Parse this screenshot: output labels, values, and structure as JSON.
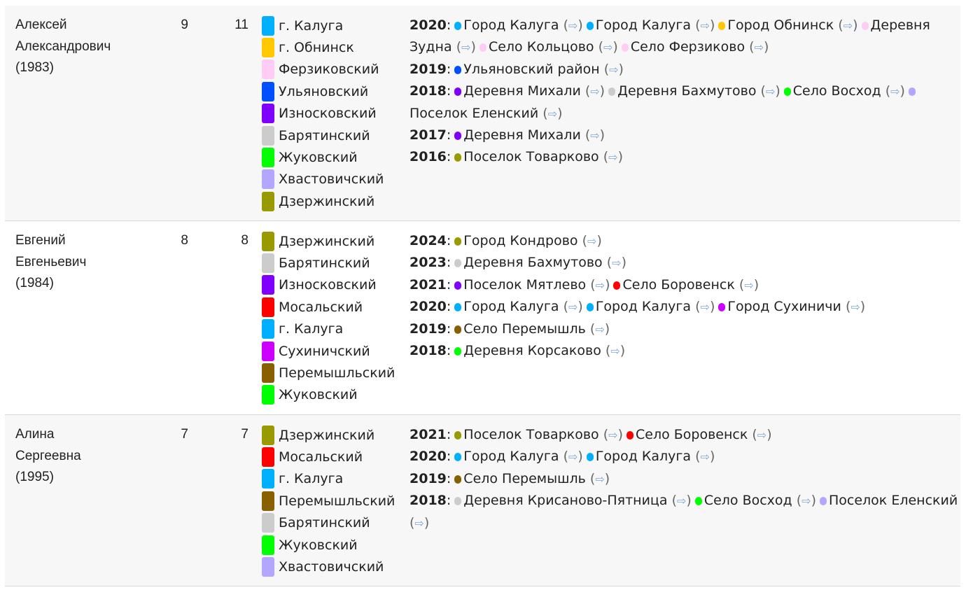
{
  "colors": {
    "г. Калуга": "#00b0ff",
    "г. Обнинск": "#ffc800",
    "Ферзиковский": "#ffccf5",
    "Ульяновский": "#0050ff",
    "Износковский": "#8000ff",
    "Барятинский": "#cccccc",
    "Жуковский": "#00ff00",
    "Хвастовичский": "#b3a6ff",
    "Дзержинский": "#999900",
    "Мосальский": "#ff0000",
    "Сухиничский": "#cc00ff",
    "Перемышльский": "#886000"
  },
  "link_arrow": "⇨",
  "rows": [
    {
      "name_lines": [
        "Алексей",
        "Александрович",
        "(1983)"
      ],
      "n1": "9",
      "n2": "11",
      "districts": [
        "г. Калуга",
        "г. Обнинск",
        "Ферзиковский",
        "Ульяновский",
        "Износковский",
        "Барятинский",
        "Жуковский",
        "Хвастовичский",
        "Дзержинский"
      ],
      "history": [
        {
          "year": "2020",
          "places": [
            {
              "label": "Город Калуга",
              "district": "г. Калуга"
            },
            {
              "label": "Город Калуга",
              "district": "г. Калуга"
            },
            {
              "label": "Город Обнинск",
              "district": "г. Обнинск"
            },
            {
              "label": "Деревня Зудна",
              "district": "Ферзиковский"
            },
            {
              "label": "Село Кольцово",
              "district": "Ферзиковский"
            },
            {
              "label": "Село Ферзиково",
              "district": "Ферзиковский"
            }
          ]
        },
        {
          "year": "2019",
          "places": [
            {
              "label": "Ульяновский район",
              "district": "Ульяновский"
            }
          ]
        },
        {
          "year": "2018",
          "places": [
            {
              "label": "Деревня Михали",
              "district": "Износковский"
            },
            {
              "label": "Деревня Бахмутово",
              "district": "Барятинский"
            },
            {
              "label": "Село Восход",
              "district": "Жуковский"
            },
            {
              "label": "Поселок Еленский",
              "district": "Хвастовичский"
            }
          ]
        },
        {
          "year": "2017",
          "places": [
            {
              "label": "Деревня Михали",
              "district": "Износковский"
            }
          ]
        },
        {
          "year": "2016",
          "places": [
            {
              "label": "Поселок Товарково",
              "district": "Дзержинский"
            }
          ]
        }
      ]
    },
    {
      "name_lines": [
        "Евгений",
        "Евгеньевич",
        "(1984)"
      ],
      "n1": "8",
      "n2": "8",
      "districts": [
        "Дзержинский",
        "Барятинский",
        "Износковский",
        "Мосальский",
        "г. Калуга",
        "Сухиничский",
        "Перемышльский",
        "Жуковский"
      ],
      "history": [
        {
          "year": "2024",
          "places": [
            {
              "label": "Город Кондрово",
              "district": "Дзержинский"
            }
          ]
        },
        {
          "year": "2023",
          "places": [
            {
              "label": "Деревня Бахмутово",
              "district": "Барятинский"
            }
          ]
        },
        {
          "year": "2021",
          "places": [
            {
              "label": "Поселок Мятлево",
              "district": "Износковский"
            },
            {
              "label": "Село Боровенск",
              "district": "Мосальский"
            }
          ]
        },
        {
          "year": "2020",
          "places": [
            {
              "label": "Город Калуга",
              "district": "г. Калуга"
            },
            {
              "label": "Город Калуга",
              "district": "г. Калуга"
            },
            {
              "label": "Город Сухиничи",
              "district": "Сухиничский"
            }
          ]
        },
        {
          "year": "2019",
          "places": [
            {
              "label": "Село Перемышль",
              "district": "Перемышльский"
            }
          ]
        },
        {
          "year": "2018",
          "places": [
            {
              "label": "Деревня Корсаково",
              "district": "Жуковский"
            }
          ]
        }
      ]
    },
    {
      "name_lines": [
        "Алина",
        "Сергеевна",
        "(1995)"
      ],
      "n1": "7",
      "n2": "7",
      "districts": [
        "Дзержинский",
        "Мосальский",
        "г. Калуга",
        "Перемышльский",
        "Барятинский",
        "Жуковский",
        "Хвастовичский"
      ],
      "history": [
        {
          "year": "2021",
          "places": [
            {
              "label": "Поселок Товарково",
              "district": "Дзержинский"
            },
            {
              "label": "Село Боровенск",
              "district": "Мосальский"
            }
          ]
        },
        {
          "year": "2020",
          "places": [
            {
              "label": "Город Калуга",
              "district": "г. Калуга"
            },
            {
              "label": "Город Калуга",
              "district": "г. Калуга"
            }
          ]
        },
        {
          "year": "2019",
          "places": [
            {
              "label": "Село Перемышль",
              "district": "Перемышльский"
            }
          ]
        },
        {
          "year": "2018",
          "places": [
            {
              "label": "Деревня Крисаново-Пятница",
              "district": "Барятинский"
            },
            {
              "label": "Село Восход",
              "district": "Жуковский"
            },
            {
              "label": "Поселок Еленский",
              "district": "Хвастовичский"
            }
          ]
        }
      ]
    }
  ]
}
